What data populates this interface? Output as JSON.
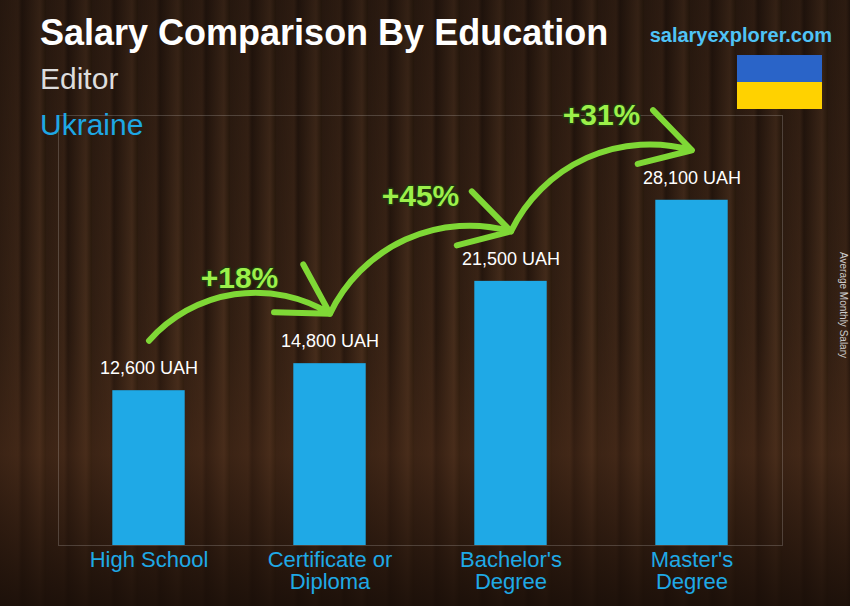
{
  "chart_data": {
    "type": "bar",
    "title": "Salary Comparison By Education",
    "subtitle": "Editor",
    "region": "Ukraine",
    "source": "salaryexplorer.com",
    "y_label": "Average Monthly Salary",
    "categories": [
      "High School",
      "Certificate or Diploma",
      "Bachelor's Degree",
      "Master's Degree"
    ],
    "values": [
      12600,
      14800,
      21500,
      28100
    ],
    "value_labels": [
      "12,600 UAH",
      "14,800 UAH",
      "21,500 UAH",
      "28,100 UAH"
    ],
    "data_labels": true,
    "annotations": [
      "+18%",
      "+45%",
      "+31%"
    ],
    "color": "#1fa9e6",
    "ylim": [
      0,
      35000
    ],
    "yticks": [],
    "tick_labels": "x"
  }
}
